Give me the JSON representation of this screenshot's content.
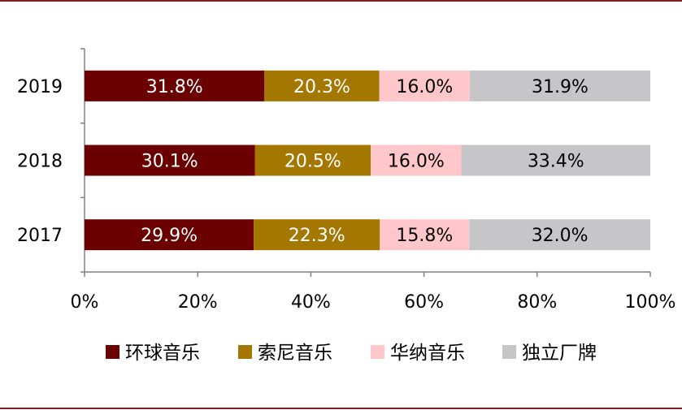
{
  "chart_data": {
    "type": "bar",
    "orientation": "horizontal",
    "stacked": "percent",
    "categories": [
      "2019",
      "2018",
      "2017"
    ],
    "series": [
      {
        "name": "环球音乐",
        "color": "#6b0000",
        "label_color": "#ffffff",
        "values": [
          31.8,
          30.1,
          29.9
        ],
        "labels": [
          "31.8%",
          "30.1%",
          "29.9%"
        ]
      },
      {
        "name": "索尼音乐",
        "color": "#a47800",
        "label_color": "#ffffff",
        "values": [
          20.3,
          20.5,
          22.3
        ],
        "labels": [
          "20.3%",
          "20.5%",
          "22.3%"
        ]
      },
      {
        "name": "华纳音乐",
        "color": "#ffc7c9",
        "label_color": "#000000",
        "values": [
          16.0,
          16.0,
          15.8
        ],
        "labels": [
          "16.0%",
          "16.0%",
          "15.8%"
        ]
      },
      {
        "name": "独立厂牌",
        "color": "#c6c5c7",
        "label_color": "#000000",
        "values": [
          31.9,
          33.4,
          32.0
        ],
        "labels": [
          "31.9%",
          "33.4%",
          "32.0%"
        ]
      }
    ],
    "xlim": [
      0,
      100
    ],
    "xticks": [
      "0%",
      "20%",
      "40%",
      "60%",
      "80%",
      "100%"
    ],
    "grid": false,
    "legend_position": "bottom",
    "frame_color": "#7a1f24"
  }
}
